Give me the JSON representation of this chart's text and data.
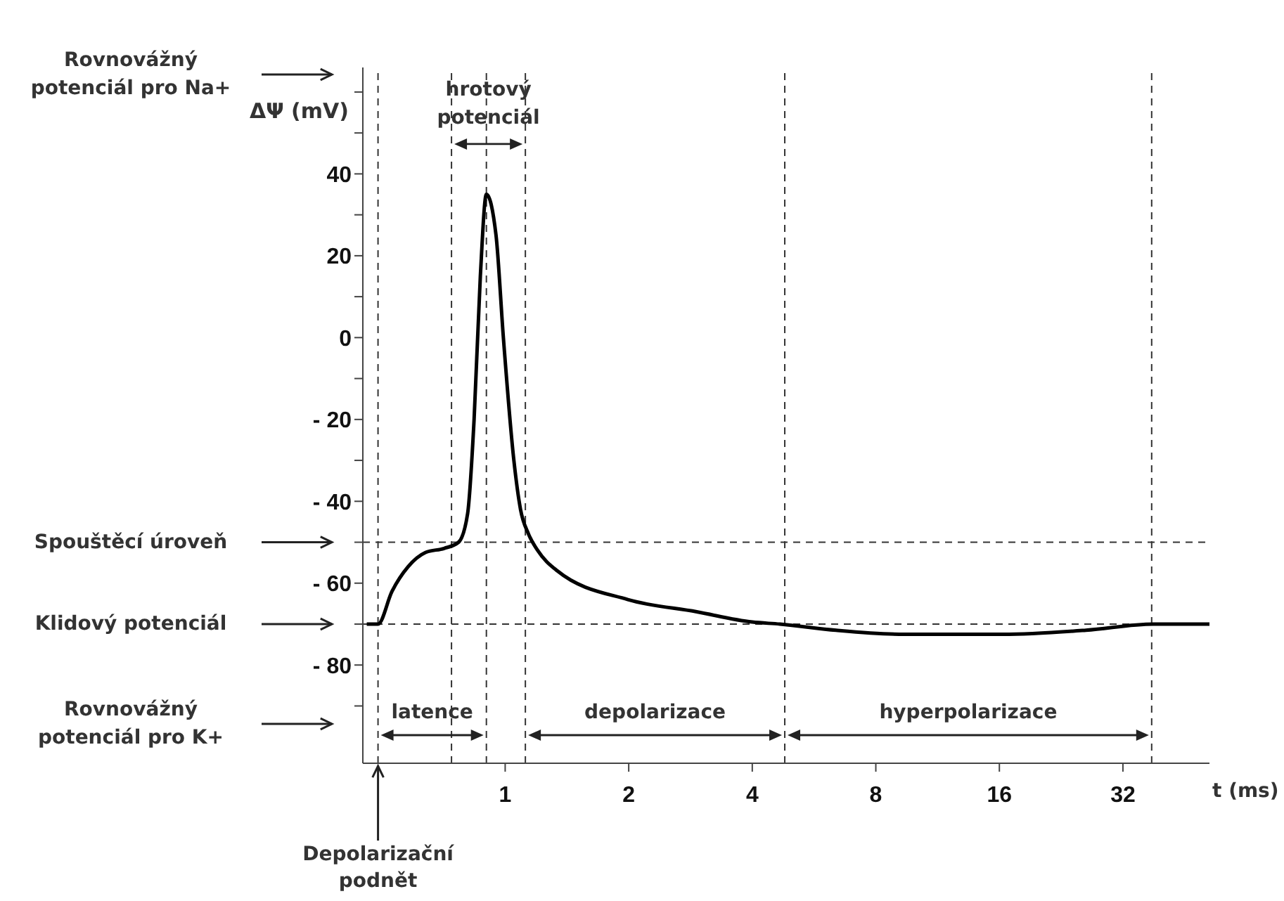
{
  "chart_data": {
    "type": "line",
    "ylabel": "ΔΨ (mV)",
    "xlabel": "t (ms)",
    "log": "x",
    "xlim": [
      0.45,
      52
    ],
    "xticks": [
      1,
      2,
      4,
      8,
      16,
      32
    ],
    "ylim": [
      -104,
      66
    ],
    "yticks": [
      {
        "value": 60,
        "label": null
      },
      {
        "value": 50,
        "label": null
      },
      40,
      {
        "value": 30,
        "label": null
      },
      20,
      {
        "value": 10,
        "label": null
      },
      0,
      {
        "value": -10,
        "label": null
      },
      {
        "value": -20,
        "label": "- 20"
      },
      {
        "value": -30,
        "label": null
      },
      {
        "value": -40,
        "label": "- 40"
      },
      {
        "value": -50,
        "label": null
      },
      {
        "value": -60,
        "label": "- 60"
      },
      {
        "value": -70,
        "label": null
      },
      {
        "value": -80,
        "label": "- 80"
      },
      {
        "value": -90,
        "label": null
      }
    ],
    "marker": "none",
    "line_style": "solid",
    "series": [
      {
        "color": "#000000",
        "x": [
          0.46,
          0.49,
          0.53,
          0.58,
          0.64,
          0.71,
          0.77,
          0.81,
          0.84,
          0.87,
          0.9,
          0.95,
          0.99,
          1.05,
          1.09,
          1.14,
          1.2,
          1.34,
          1.99,
          2.93,
          4.0,
          4.67,
          6.4,
          9.4,
          16.3,
          26,
          38,
          48.5,
          52
        ],
        "values": [
          -70,
          -70,
          -62,
          -56,
          -52.5,
          -51.5,
          -50,
          -43,
          -20,
          15,
          35,
          25,
          0,
          -30,
          -42,
          -48,
          -52,
          -57,
          -64,
          -67,
          -69.5,
          -70,
          -71.5,
          -72.5,
          -72.5,
          -71.5,
          -70,
          -70,
          -70
        ]
      }
    ],
    "ref_lines": [
      {
        "axis": "y",
        "value": -50,
        "line_style": "dashed"
      },
      {
        "axis": "y",
        "value": -70,
        "line_style": "dashed"
      },
      {
        "axis": "x",
        "value": 0.49,
        "line_style": "dashed"
      },
      {
        "axis": "x",
        "value": 0.74,
        "line_style": "dashed"
      },
      {
        "axis": "x",
        "value": 0.9,
        "line_style": "dashed"
      },
      {
        "axis": "x",
        "value": 1.12,
        "line_style": "dashed"
      },
      {
        "axis": "x",
        "value": 4.8,
        "line_style": "dashed"
      },
      {
        "axis": "x",
        "value": 37.6,
        "line_style": "dashed"
      }
    ],
    "annotations": [
      "Rovnovážný potenciál pro Na+",
      "Spouštěcí úroveň",
      "Klidový potenciál",
      "Rovnovážný potenciál pro K+",
      "Depolarizační podnět",
      "hrotový potenciál",
      "latence",
      "depolarizace",
      "hyperpolarizace"
    ]
  }
}
